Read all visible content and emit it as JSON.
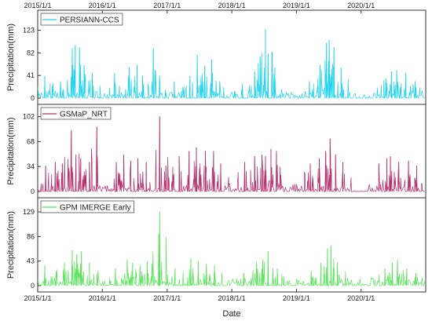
{
  "chart_data": {
    "type": "line",
    "xlabel": "Date",
    "x_ticks": [
      "2015/1/1",
      "2016/1/1",
      "2017/1/1",
      "2018/1/1",
      "2019/1/1",
      "2020/1/1"
    ],
    "x_range": [
      "2015-01-01",
      "2020-12-31"
    ],
    "grid": false,
    "legend_position": "top-left",
    "panels": [
      {
        "ylabel": "Precipitation(mm)",
        "ylim": [
          0,
          145
        ],
        "yticks": [
          0,
          41,
          82,
          123
        ],
        "series": [
          {
            "name": "PERSIANN-CCS",
            "color": "#22d3ee",
            "peaks": [
              {
                "date": "2015-02-10",
                "value": 40
              },
              {
                "date": "2015-03-25",
                "value": 22
              },
              {
                "date": "2015-05-10",
                "value": 30
              },
              {
                "date": "2015-07-15",
                "value": 90
              },
              {
                "date": "2015-08-01",
                "value": 96
              },
              {
                "date": "2015-08-25",
                "value": 92
              },
              {
                "date": "2015-09-20",
                "value": 60
              },
              {
                "date": "2015-11-05",
                "value": 45
              },
              {
                "date": "2016-03-10",
                "value": 45
              },
              {
                "date": "2016-06-01",
                "value": 55
              },
              {
                "date": "2016-07-15",
                "value": 60
              },
              {
                "date": "2016-08-15",
                "value": 40
              },
              {
                "date": "2016-10-15",
                "value": 90
              },
              {
                "date": "2016-11-20",
                "value": 35
              },
              {
                "date": "2017-02-10",
                "value": 30
              },
              {
                "date": "2017-05-10",
                "value": 40
              },
              {
                "date": "2017-06-20",
                "value": 78
              },
              {
                "date": "2017-08-01",
                "value": 58
              },
              {
                "date": "2017-09-10",
                "value": 70
              },
              {
                "date": "2017-10-25",
                "value": 30
              },
              {
                "date": "2018-03-01",
                "value": 25
              },
              {
                "date": "2018-05-10",
                "value": 48
              },
              {
                "date": "2018-06-10",
                "value": 75
              },
              {
                "date": "2018-07-10",
                "value": 125
              },
              {
                "date": "2018-07-25",
                "value": 80
              },
              {
                "date": "2018-09-01",
                "value": 55
              },
              {
                "date": "2019-03-15",
                "value": 30
              },
              {
                "date": "2019-05-15",
                "value": 60
              },
              {
                "date": "2019-06-20",
                "value": 100
              },
              {
                "date": "2019-07-05",
                "value": 105
              },
              {
                "date": "2019-08-01",
                "value": 92
              },
              {
                "date": "2019-09-10",
                "value": 55
              },
              {
                "date": "2020-05-20",
                "value": 35
              },
              {
                "date": "2020-06-20",
                "value": 48
              },
              {
                "date": "2020-07-20",
                "value": 50
              },
              {
                "date": "2020-09-10",
                "value": 45
              },
              {
                "date": "2020-11-01",
                "value": 30
              }
            ]
          }
        ]
      },
      {
        "ylabel": "Precipitation(mm)",
        "ylim": [
          0,
          108
        ],
        "yticks": [
          0,
          34,
          68,
          102
        ],
        "series": [
          {
            "name": "GSMaP_NRT",
            "color": "#b5306e",
            "peaks": [
              {
                "date": "2015-02-15",
                "value": 35
              },
              {
                "date": "2015-04-10",
                "value": 40
              },
              {
                "date": "2015-05-20",
                "value": 38
              },
              {
                "date": "2015-07-10",
                "value": 83
              },
              {
                "date": "2015-08-05",
                "value": 50
              },
              {
                "date": "2015-09-01",
                "value": 45
              },
              {
                "date": "2015-10-20",
                "value": 40
              },
              {
                "date": "2015-12-01",
                "value": 88
              },
              {
                "date": "2016-03-20",
                "value": 40
              },
              {
                "date": "2016-05-01",
                "value": 50
              },
              {
                "date": "2016-06-10",
                "value": 42
              },
              {
                "date": "2016-07-20",
                "value": 45
              },
              {
                "date": "2016-09-05",
                "value": 40
              },
              {
                "date": "2016-11-20",
                "value": 102
              },
              {
                "date": "2016-12-25",
                "value": 35
              },
              {
                "date": "2017-03-10",
                "value": 48
              },
              {
                "date": "2017-05-05",
                "value": 55
              },
              {
                "date": "2017-06-15",
                "value": 60
              },
              {
                "date": "2017-08-05",
                "value": 55
              },
              {
                "date": "2017-09-20",
                "value": 55
              },
              {
                "date": "2017-10-30",
                "value": 38
              },
              {
                "date": "2018-03-15",
                "value": 40
              },
              {
                "date": "2018-05-10",
                "value": 48
              },
              {
                "date": "2018-06-20",
                "value": 50
              },
              {
                "date": "2018-07-10",
                "value": 48
              },
              {
                "date": "2018-08-10",
                "value": 58
              },
              {
                "date": "2018-09-10",
                "value": 55
              },
              {
                "date": "2019-03-20",
                "value": 38
              },
              {
                "date": "2019-05-10",
                "value": 45
              },
              {
                "date": "2019-06-15",
                "value": 55
              },
              {
                "date": "2019-07-10",
                "value": 72
              },
              {
                "date": "2019-08-10",
                "value": 50
              },
              {
                "date": "2019-09-20",
                "value": 40
              },
              {
                "date": "2020-04-10",
                "value": 38
              },
              {
                "date": "2020-05-25",
                "value": 45
              },
              {
                "date": "2020-06-15",
                "value": 48
              },
              {
                "date": "2020-08-01",
                "value": 40
              },
              {
                "date": "2020-09-25",
                "value": 42
              },
              {
                "date": "2020-11-10",
                "value": 35
              }
            ]
          }
        ]
      },
      {
        "ylabel": "Precipitation(mm)",
        "ylim": [
          0,
          140
        ],
        "yticks": [
          0,
          43,
          86,
          129
        ],
        "series": [
          {
            "name": "GPM IMERGE Early",
            "color": "#5ee35e",
            "peaks": [
              {
                "date": "2015-02-10",
                "value": 35
              },
              {
                "date": "2015-04-15",
                "value": 25
              },
              {
                "date": "2015-06-01",
                "value": 40
              },
              {
                "date": "2015-07-15",
                "value": 62
              },
              {
                "date": "2015-08-10",
                "value": 55
              },
              {
                "date": "2015-09-05",
                "value": 60
              },
              {
                "date": "2015-10-20",
                "value": 40
              },
              {
                "date": "2016-03-15",
                "value": 30
              },
              {
                "date": "2016-05-20",
                "value": 45
              },
              {
                "date": "2016-06-20",
                "value": 40
              },
              {
                "date": "2016-08-01",
                "value": 35
              },
              {
                "date": "2016-09-10",
                "value": 42
              },
              {
                "date": "2016-11-15",
                "value": 90
              },
              {
                "date": "2016-11-20",
                "value": 129
              },
              {
                "date": "2017-02-15",
                "value": 30
              },
              {
                "date": "2017-05-15",
                "value": 48
              },
              {
                "date": "2017-06-25",
                "value": 42
              },
              {
                "date": "2017-08-10",
                "value": 38
              },
              {
                "date": "2017-09-25",
                "value": 35
              },
              {
                "date": "2018-03-10",
                "value": 22
              },
              {
                "date": "2018-05-20",
                "value": 40
              },
              {
                "date": "2018-06-25",
                "value": 45
              },
              {
                "date": "2018-07-25",
                "value": 60
              },
              {
                "date": "2018-09-15",
                "value": 30
              },
              {
                "date": "2019-03-25",
                "value": 25
              },
              {
                "date": "2019-05-20",
                "value": 40
              },
              {
                "date": "2019-06-25",
                "value": 65
              },
              {
                "date": "2019-07-15",
                "value": 70
              },
              {
                "date": "2019-08-20",
                "value": 40
              },
              {
                "date": "2020-05-15",
                "value": 30
              },
              {
                "date": "2020-06-25",
                "value": 40
              },
              {
                "date": "2020-07-25",
                "value": 45
              },
              {
                "date": "2020-09-15",
                "value": 30
              },
              {
                "date": "2020-11-05",
                "value": 22
              }
            ]
          }
        ]
      }
    ]
  }
}
